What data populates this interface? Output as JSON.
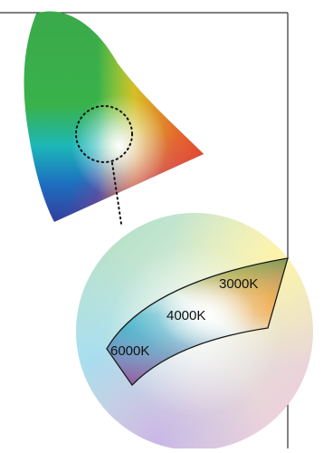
{
  "diagram": {
    "labels": {
      "cct_3000k": "3000K",
      "cct_4000k": "4000K",
      "cct_6000k": "6000K"
    },
    "colors": {
      "frame_line": "#333333",
      "dotted_line": "#111111",
      "region_outline": "#1a1a1a",
      "chromaticity_green": "#2fa84a",
      "chromaticity_cyan": "#19b6c8",
      "chromaticity_blue": "#2b2f8f",
      "chromaticity_purple": "#6a2a8c",
      "chromaticity_magenta": "#d6378c",
      "chromaticity_red": "#e83b2a",
      "chromaticity_orange": "#f29a1f",
      "chromaticity_yellow": "#f5e61c",
      "chromaticity_white": "#ffffff"
    }
  }
}
